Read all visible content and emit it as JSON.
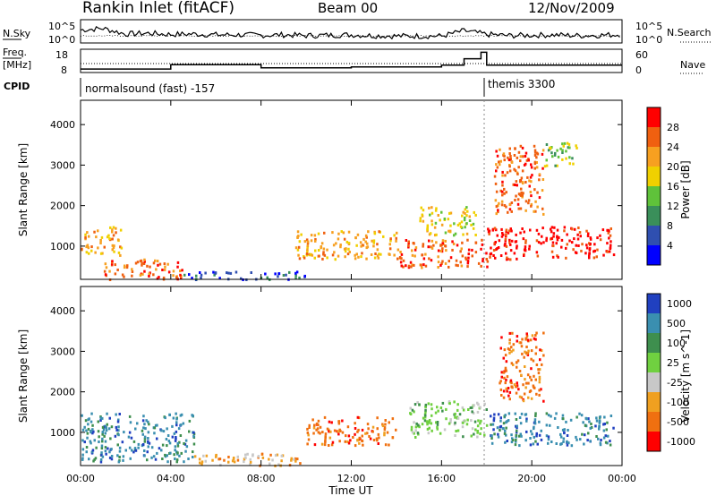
{
  "header": {
    "title": "Rankin Inlet (fitACF)",
    "beam": "Beam 00",
    "date": "12/Nov/2009"
  },
  "left_labels": {
    "nsky": "N.Sky",
    "freq": "Freq.",
    "mhz": "[MHz]",
    "cpid": "CPID"
  },
  "right_labels": {
    "nsearch": "N.Search",
    "nave": "Nave"
  },
  "cpid": {
    "left": "normalsound (fast) -157",
    "right": "themis 3300"
  },
  "colors": {
    "power_scale": [
      "#0000ff",
      "#2f4fb0",
      "#3a8f5a",
      "#5fc23a",
      "#f0d000",
      "#f7a020",
      "#f06010",
      "#ff0000"
    ],
    "velocity_scale": [
      "#2040c0",
      "#3a8fb0",
      "#3e8f4e",
      "#70d040",
      "#c8c8c8",
      "#f0a020",
      "#f07010",
      "#ff0000"
    ]
  },
  "chart_data": [
    {
      "type": "line",
      "name": "noise",
      "ylabel_left": "N.Sky",
      "ylabel_right": "N.Search",
      "yticks_left": [
        "10^5",
        "10^0"
      ],
      "yticks_right": [
        "10^5",
        "10^0"
      ],
      "x": [
        "00:00",
        "01:00",
        "02:00",
        "03:00",
        "04:00",
        "05:00",
        "06:00",
        "07:00",
        "08:00",
        "09:00",
        "10:00",
        "11:00",
        "12:00",
        "13:00",
        "14:00",
        "15:00",
        "16:00",
        "17:00",
        "18:00",
        "19:00",
        "20:00",
        "21:00",
        "22:00",
        "23:00",
        "24:00"
      ],
      "sky": [
        3.0,
        3.4,
        2.0,
        2.2,
        1.9,
        2.0,
        1.8,
        1.8,
        1.7,
        1.8,
        1.6,
        1.7,
        1.8,
        1.6,
        1.5,
        1.5,
        1.5,
        2.8,
        1.9,
        1.6,
        1.7,
        1.8,
        1.6,
        1.7,
        1.9
      ]
    },
    {
      "type": "line",
      "name": "frequency",
      "ylabel_left": "Freq. [MHz]",
      "ylabel_right": "Nave",
      "yticks_left": [
        "18",
        "8"
      ],
      "yticks_right": [
        "60",
        "0"
      ],
      "ylim": [
        8,
        18
      ],
      "x": [
        "00:00",
        "04:00",
        "08:00",
        "12:00",
        "16:00",
        "17:00",
        "17:45",
        "18:00",
        "20:00",
        "24:00"
      ],
      "freq": [
        9.2,
        11.2,
        9.8,
        10.2,
        11.0,
        14.0,
        17.0,
        11.0,
        11.0,
        11.0
      ]
    },
    {
      "type": "heatmap",
      "name": "power",
      "ylabel": "Slant Range [km]",
      "xlabel": "",
      "ylim": [
        180,
        4600
      ],
      "yticks": [
        1000,
        2000,
        3000,
        4000
      ],
      "xticks": [
        "00:00",
        "04:00",
        "08:00",
        "12:00",
        "16:00",
        "20:00",
        "00:00"
      ],
      "colorbar_label": "Power [dB]",
      "colorbar_ticks": [
        4,
        8,
        12,
        16,
        20,
        24,
        28
      ],
      "colorbar_range": [
        0,
        32
      ],
      "regions": [
        {
          "t0": 0.0,
          "t1": 1.8,
          "r0": 800,
          "r1": 1500,
          "level": 20
        },
        {
          "t0": 1.0,
          "t1": 4.5,
          "r0": 200,
          "r1": 700,
          "level": 26
        },
        {
          "t0": 4.5,
          "t1": 10.0,
          "r0": 200,
          "r1": 400,
          "level": 6
        },
        {
          "t0": 9.5,
          "t1": 14.0,
          "r0": 700,
          "r1": 1400,
          "level": 22
        },
        {
          "t0": 14.0,
          "t1": 18.0,
          "r0": 500,
          "r1": 1200,
          "level": 27
        },
        {
          "t0": 15.0,
          "t1": 17.5,
          "r0": 1300,
          "r1": 2000,
          "level": 18
        },
        {
          "t0": 18.0,
          "t1": 23.6,
          "r0": 700,
          "r1": 1500,
          "level": 28
        },
        {
          "t0": 18.3,
          "t1": 20.5,
          "r0": 1800,
          "r1": 3500,
          "level": 24
        },
        {
          "t0": 20.5,
          "t1": 22.0,
          "r0": 3000,
          "r1": 3600,
          "level": 12
        }
      ]
    },
    {
      "type": "heatmap",
      "name": "velocity",
      "ylabel": "Slant Range [km]",
      "xlabel": "Time UT",
      "ylim": [
        180,
        4600
      ],
      "yticks": [
        1000,
        2000,
        3000,
        4000
      ],
      "xticks": [
        "00:00",
        "04:00",
        "08:00",
        "12:00",
        "16:00",
        "20:00",
        "00:00"
      ],
      "colorbar_label": "Velocity [m s^-1]",
      "colorbar_ticks": [
        "1000",
        "500",
        "100",
        "25",
        "-25",
        "-100",
        "-500",
        "-1000"
      ],
      "regions": [
        {
          "t0": 0.0,
          "t1": 5.0,
          "r0": 300,
          "r1": 1500,
          "level": 100
        },
        {
          "t0": 5.0,
          "t1": 10.0,
          "r0": 200,
          "r1": 500,
          "level": -50
        },
        {
          "t0": 10.0,
          "t1": 14.0,
          "r0": 700,
          "r1": 1400,
          "level": -200
        },
        {
          "t0": 14.5,
          "t1": 18.0,
          "r0": 900,
          "r1": 1800,
          "level": 0
        },
        {
          "t0": 18.0,
          "t1": 23.6,
          "r0": 700,
          "r1": 1500,
          "level": 100
        },
        {
          "t0": 18.5,
          "t1": 20.5,
          "r0": 1800,
          "r1": 3500,
          "level": -300
        }
      ]
    }
  ]
}
